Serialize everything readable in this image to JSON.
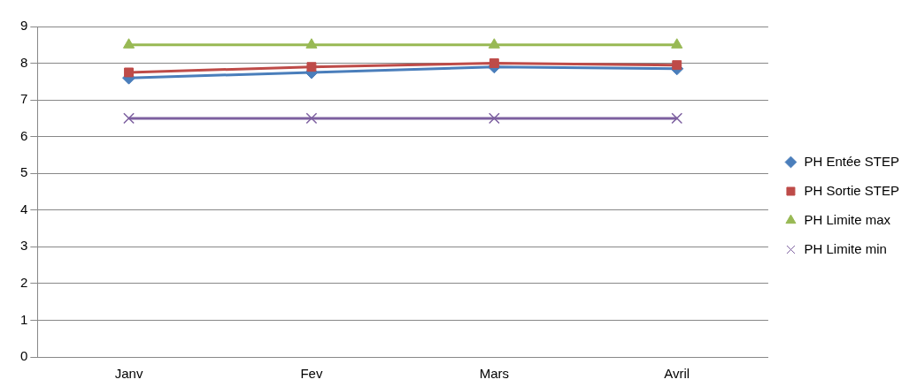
{
  "chart_data": {
    "type": "line",
    "categories": [
      "Janv",
      "Fev",
      "Mars",
      "Avril"
    ],
    "series": [
      {
        "name": "PH Entée STEP",
        "color": "#4a7ebb",
        "marker": "diamond",
        "values": [
          7.6,
          7.75,
          7.9,
          7.85
        ]
      },
      {
        "name": "PH Sortie STEP",
        "color": "#be4b48",
        "marker": "square",
        "values": [
          7.75,
          7.9,
          8.0,
          7.95
        ]
      },
      {
        "name": "PH Limite max",
        "color": "#98b954",
        "marker": "triangle",
        "values": [
          8.5,
          8.5,
          8.5,
          8.5
        ]
      },
      {
        "name": "PH Limite min",
        "color": "#7d60a0",
        "marker": "cross",
        "values": [
          6.5,
          6.5,
          6.5,
          6.5
        ]
      }
    ],
    "ylim": [
      0,
      9
    ],
    "yticks": [
      0,
      1,
      2,
      3,
      4,
      5,
      6,
      7,
      8,
      9
    ],
    "grid": "y",
    "legend": "right",
    "line_style": "solid"
  }
}
